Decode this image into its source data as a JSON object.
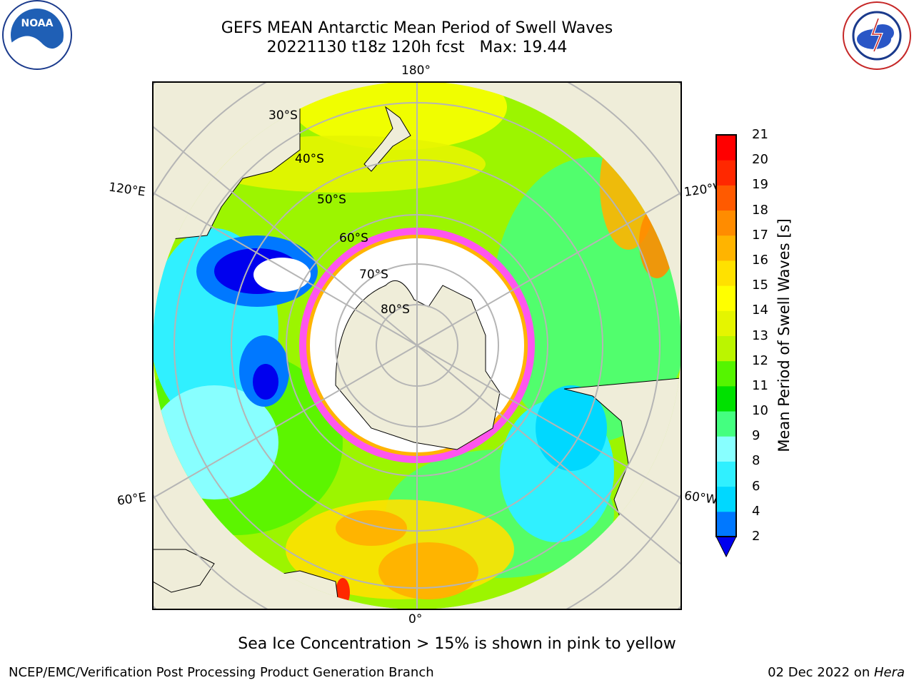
{
  "header": {
    "title_line1": "GEFS MEAN Antarctic Mean Period of Swell Waves",
    "title_line2": "20221130 t18z 120h fcst   Max: 19.44"
  },
  "logos": {
    "left": "noara-logo",
    "right": "national-weather-service-logo"
  },
  "map": {
    "projection": "south-polar-stereographic",
    "meridian_labels": {
      "top": "180°",
      "bottom": "0°",
      "upper_left": "120°E",
      "upper_right": "120°W",
      "lower_left": "60°E",
      "lower_right": "60°W"
    },
    "latitude_labels": [
      "30°S",
      "40°S",
      "50°S",
      "60°S",
      "70°S",
      "80°S"
    ],
    "colors": {
      "land": "#efedd9",
      "ice_edge": "#ff55ee",
      "grid": "#b5b5b5"
    }
  },
  "colorbar": {
    "label": "Mean Period of Swell Waves [s]",
    "ticks": [
      "21",
      "20",
      "19",
      "18",
      "17",
      "16",
      "15",
      "14",
      "13",
      "12",
      "11",
      "10",
      "9",
      "8",
      "6",
      "4",
      "2"
    ],
    "colors": [
      "#0000ee",
      "#0078ff",
      "#00d8ff",
      "#30f0ff",
      "#88ffff",
      "#44ff80",
      "#00e100",
      "#55f500",
      "#bbf500",
      "#e5f500",
      "#ffff00",
      "#ffe100",
      "#ffb400",
      "#ff8c00",
      "#ff5a00",
      "#ff2800",
      "#ff0000"
    ]
  },
  "annotation": "Sea Ice Concentration > 15% is shown in pink to yellow",
  "footer": {
    "left": "NCEP/EMC/Verification Post Processing Product Generation Branch",
    "right_prefix": "02 Dec 2022 on ",
    "right_host": "Hera"
  }
}
